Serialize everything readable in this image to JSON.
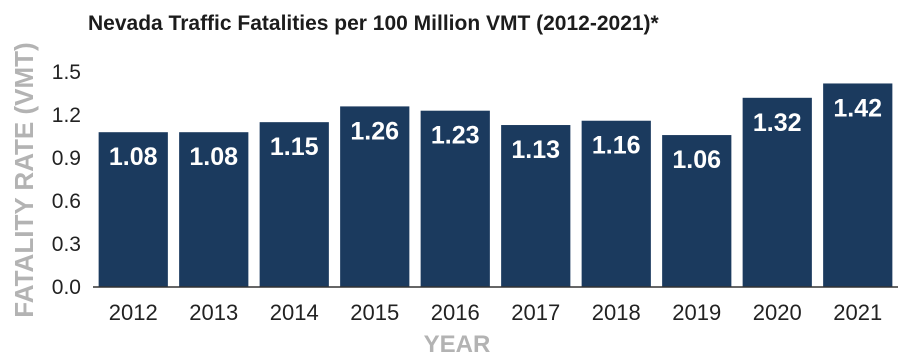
{
  "chart_data": {
    "type": "bar",
    "title": "Nevada Traffic Fatalities per 100 Million VMT (2012-2021)*",
    "xlabel": "YEAR",
    "ylabel": "FATALITY RATE (VMT)",
    "categories": [
      "2012",
      "2013",
      "2014",
      "2015",
      "2016",
      "2017",
      "2018",
      "2019",
      "2020",
      "2021"
    ],
    "values": [
      1.08,
      1.08,
      1.15,
      1.26,
      1.23,
      1.13,
      1.16,
      1.06,
      1.32,
      1.42
    ],
    "data_labels": [
      "1.08",
      "1.08",
      "1.15",
      "1.26",
      "1.23",
      "1.13",
      "1.16",
      "1.06",
      "1.32",
      "1.42"
    ],
    "yticks": [
      "0.0",
      "0.3",
      "0.6",
      "0.9",
      "1.2",
      "1.5"
    ],
    "ytick_values": [
      0,
      0.3,
      0.6,
      0.9,
      1.2,
      1.5
    ],
    "ylim": [
      0,
      1.5
    ],
    "grid": false,
    "bar_color": "#1b3a5e",
    "label_color": "#ffffff"
  }
}
